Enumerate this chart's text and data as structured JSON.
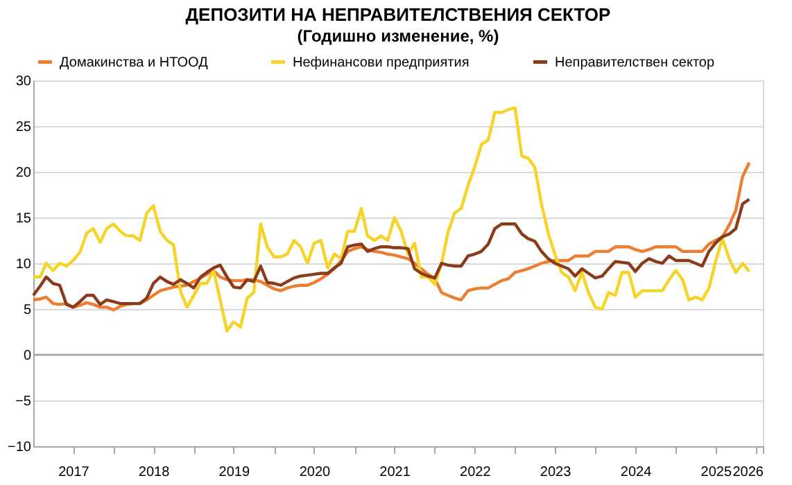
{
  "chart_data": {
    "type": "line",
    "title": "ДЕПОЗИТИ НА НЕПРАВИТЕЛСТВЕНИЯ СЕКТОР",
    "subtitle": "(Годишно изменение, %)",
    "x": [
      "2017-01",
      "2017-02",
      "2017-03",
      "2017-04",
      "2017-05",
      "2017-06",
      "2017-07",
      "2017-08",
      "2017-09",
      "2017-10",
      "2017-11",
      "2017-12",
      "2018-01",
      "2018-02",
      "2018-03",
      "2018-04",
      "2018-05",
      "2018-06",
      "2018-07",
      "2018-08",
      "2018-09",
      "2018-10",
      "2018-11",
      "2018-12",
      "2019-01",
      "2019-02",
      "2019-03",
      "2019-04",
      "2019-05",
      "2019-06",
      "2019-07",
      "2019-08",
      "2019-09",
      "2019-10",
      "2019-11",
      "2019-12",
      "2020-01",
      "2020-02",
      "2020-03",
      "2020-04",
      "2020-05",
      "2020-06",
      "2020-07",
      "2020-08",
      "2020-09",
      "2020-10",
      "2020-11",
      "2020-12",
      "2021-01",
      "2021-02",
      "2021-03",
      "2021-04",
      "2021-05",
      "2021-06",
      "2021-07",
      "2021-08",
      "2021-09",
      "2021-10",
      "2021-11",
      "2021-12",
      "2022-01",
      "2022-02",
      "2022-03",
      "2022-04",
      "2022-05",
      "2022-06",
      "2022-07",
      "2022-08",
      "2022-09",
      "2022-10",
      "2022-11",
      "2022-12",
      "2023-01",
      "2023-02",
      "2023-03",
      "2023-04",
      "2023-05",
      "2023-06",
      "2023-07",
      "2023-08",
      "2023-09",
      "2023-10",
      "2023-11",
      "2023-12",
      "2024-01",
      "2024-02",
      "2024-03",
      "2024-04",
      "2024-05",
      "2024-06",
      "2024-07",
      "2024-08",
      "2024-09",
      "2024-10",
      "2024-11",
      "2024-12",
      "2025-01",
      "2025-02",
      "2025-03",
      "2025-04",
      "2025-05",
      "2025-06",
      "2025-07",
      "2025-08",
      "2025-09",
      "2025-10",
      "2025-11",
      "2025-12"
    ],
    "legend": "top",
    "grid": "y",
    "line_style": "solid",
    "marker": "none",
    "xlim": [
      "2017-01",
      "2026-02"
    ],
    "ylim": [
      -10,
      30
    ],
    "yticks": [
      -10,
      -5,
      0,
      5,
      10,
      15,
      20,
      25,
      30
    ],
    "xticks": [
      {
        "value": "2017-07",
        "label": "2017"
      },
      {
        "value": "2018-01",
        "label": null
      },
      {
        "value": "2018-07",
        "label": "2018"
      },
      {
        "value": "2019-01",
        "label": null
      },
      {
        "value": "2019-07",
        "label": "2019"
      },
      {
        "value": "2020-01",
        "label": null
      },
      {
        "value": "2020-07",
        "label": "2020"
      },
      {
        "value": "2021-01",
        "label": null
      },
      {
        "value": "2021-07",
        "label": "2021"
      },
      {
        "value": "2022-01",
        "label": null
      },
      {
        "value": "2022-07",
        "label": "2022"
      },
      {
        "value": "2023-01",
        "label": null
      },
      {
        "value": "2023-07",
        "label": "2023"
      },
      {
        "value": "2024-01",
        "label": null
      },
      {
        "value": "2024-07",
        "label": "2024"
      },
      {
        "value": "2025-01",
        "label": null
      },
      {
        "value": "2025-07",
        "label": "2025"
      },
      {
        "value": "2026-01",
        "label": null
      },
      {
        "value": "2026-02",
        "label": "2026"
      }
    ],
    "ref_lines": [
      {
        "axis": "y",
        "value": 0,
        "color": "#a6a6a6"
      }
    ],
    "series": [
      {
        "name": "Домакинства и НТООД",
        "color": "#ed7d31",
        "values": [
          6,
          6.1,
          6.3,
          5.6,
          5.5,
          5.6,
          5.2,
          5.4,
          5.7,
          5.5,
          5.2,
          5.2,
          4.9,
          5.3,
          5.5,
          5.6,
          5.6,
          6.0,
          6.5,
          7.0,
          7.2,
          7.4,
          7.5,
          7.6,
          8.0,
          8.4,
          8.8,
          9.2,
          8.5,
          8.2,
          8.1,
          8.1,
          8.2,
          8.2,
          8.0,
          7.6,
          7.2,
          7.0,
          7.3,
          7.5,
          7.6,
          7.6,
          7.9,
          8.3,
          8.8,
          9.4,
          10.3,
          11.3,
          11.6,
          11.8,
          11.5,
          11.3,
          11.2,
          11.0,
          10.9,
          10.7,
          10.5,
          10.0,
          9.4,
          8.8,
          8.3,
          6.8,
          6.5,
          6.2,
          6.0,
          7.0,
          7.2,
          7.3,
          7.3,
          7.7,
          8.1,
          8.3,
          9.0,
          9.2,
          9.4,
          9.7,
          10.0,
          10.2,
          10.3,
          10.3,
          10.3,
          10.8,
          10.8,
          10.8,
          11.3,
          11.3,
          11.3,
          11.8,
          11.8,
          11.8,
          11.5,
          11.3,
          11.5,
          11.8,
          11.8,
          11.8,
          11.8,
          11.3,
          11.3,
          11.3,
          11.3,
          12.1,
          12.5,
          12.9,
          14.2,
          15.8,
          19.5,
          21
        ]
      },
      {
        "name": "Нефинансови предприятия",
        "color": "#f5d327",
        "values": [
          8.5,
          8.5,
          10,
          9.2,
          10,
          9.7,
          10.3,
          11.2,
          13.3,
          13.8,
          12.3,
          13.8,
          14.3,
          13.5,
          13,
          13,
          12.5,
          15.5,
          16.3,
          13.5,
          12.5,
          12,
          7,
          5.2,
          6.5,
          7.8,
          7.8,
          9.2,
          6,
          2.6,
          3.6,
          3,
          6.2,
          6.8,
          14.3,
          11.8,
          10.7,
          10.7,
          11,
          12.5,
          11.8,
          10,
          12.2,
          12.5,
          9.5,
          11,
          10.5,
          13.5,
          13.5,
          16,
          13,
          12.5,
          13,
          12.5,
          15,
          13.5,
          11,
          12.2,
          8.5,
          8.5,
          7.7,
          10,
          13.3,
          15.5,
          16,
          18.5,
          20.5,
          23,
          23.5,
          26.5,
          26.5,
          26.8,
          27,
          21.7,
          21.5,
          20.5,
          16.5,
          13.3,
          11,
          9,
          8.5,
          7,
          9,
          6.8,
          5.2,
          5,
          6.8,
          6.5,
          9,
          9,
          6.3,
          7,
          7,
          7,
          7,
          8.2,
          9.2,
          8.2,
          6,
          6.3,
          6,
          7.3,
          10.2,
          12.7,
          10.5,
          9,
          10,
          9.1
        ]
      },
      {
        "name": "Неправителствен сектор",
        "color": "#8b3a1a",
        "values": [
          6.5,
          7.5,
          8.5,
          7.8,
          7.6,
          5.5,
          5.2,
          5.8,
          6.5,
          6.5,
          5.5,
          6,
          5.8,
          5.6,
          5.6,
          5.6,
          5.6,
          6.2,
          7.8,
          8.5,
          8,
          7.7,
          8.2,
          7.8,
          7.3,
          8.5,
          9,
          9.5,
          9.8,
          8.5,
          7.4,
          7.3,
          8.2,
          8.0,
          9.7,
          7.9,
          7.8,
          7.6,
          8.0,
          8.4,
          8.6,
          8.7,
          8.8,
          8.9,
          8.9,
          9.5,
          10,
          11.8,
          12,
          12.1,
          11.3,
          11.6,
          11.8,
          11.8,
          11.7,
          11.7,
          11.6,
          9.4,
          8.9,
          8.6,
          8.4,
          10,
          9.8,
          9.7,
          9.7,
          10.8,
          11,
          11.3,
          12.1,
          13.8,
          14.3,
          14.3,
          14.3,
          13.2,
          12.7,
          12.4,
          11.3,
          10.5,
          10,
          9.7,
          9.4,
          8.6,
          9.4,
          8.9,
          8.4,
          8.6,
          9.4,
          10.2,
          10.1,
          10,
          9.1,
          10,
          10.5,
          10.2,
          10,
          10.8,
          10.3,
          10.3,
          10.3,
          10,
          9.7,
          11.3,
          12.2,
          12.9,
          13.2,
          13.8,
          16.5,
          17
        ]
      }
    ]
  }
}
